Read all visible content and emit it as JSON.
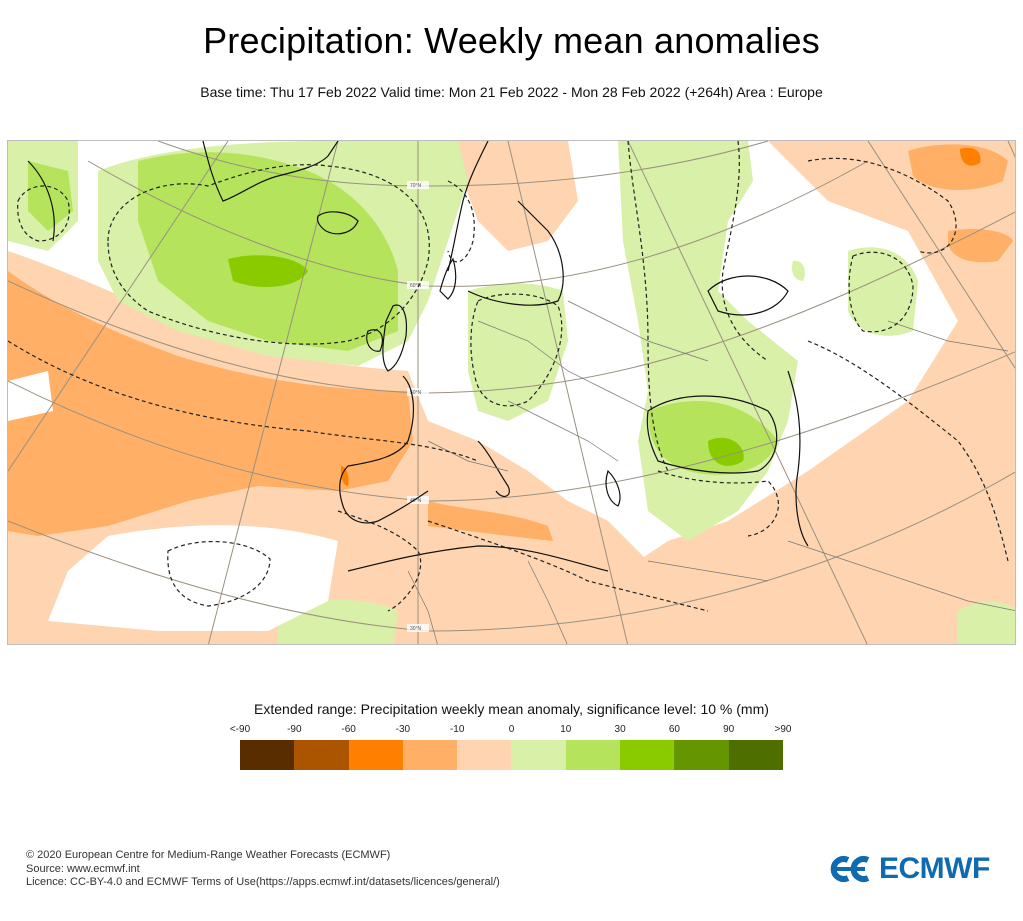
{
  "header": {
    "title": "Precipitation: Weekly mean anomalies",
    "subtitle": "Base time: Thu 17 Feb 2022 Valid time: Mon 21 Feb 2022 - Mon 28 Feb 2022 (+264h) Area : Europe"
  },
  "map": {
    "area": "Europe",
    "latitude_labels": [
      "70°N",
      "60°N",
      "50°N",
      "40°N",
      "30°N"
    ],
    "colors": {
      "neg_lt90": "#5a2d00",
      "neg_90_60": "#ab5500",
      "neg_60_30": "#ff7f00",
      "neg_30_10": "#ffb066",
      "neg_10_0": "#fed5b0",
      "pos_0_10": "#d9f0a8",
      "pos_10_30": "#b5e35c",
      "pos_30_60": "#8acb00",
      "pos_60_90": "#659600",
      "pos_gt90": "#4f6e00"
    }
  },
  "legend": {
    "title": "Extended range: Precipitation weekly mean anomaly, significance level: 10 % (mm)",
    "ticks": [
      "<-90",
      "-90",
      "-60",
      "-30",
      "-10",
      "0",
      "10",
      "30",
      "60",
      "90",
      ">90"
    ],
    "bins": [
      {
        "range": "<-90 to -90",
        "color": "#5a2d00"
      },
      {
        "range": "-90 to -60",
        "color": "#ab5500"
      },
      {
        "range": "-60 to -30",
        "color": "#ff7f00"
      },
      {
        "range": "-30 to -10",
        "color": "#ffb066"
      },
      {
        "range": "-10 to 0",
        "color": "#fed5b0"
      },
      {
        "range": "0 to 10",
        "color": "#d9f0a8"
      },
      {
        "range": "10 to 30",
        "color": "#b5e35c"
      },
      {
        "range": "30 to 60",
        "color": "#8acb00"
      },
      {
        "range": "60 to 90",
        "color": "#659600"
      },
      {
        "range": "90 to >90",
        "color": "#4f6e00"
      }
    ]
  },
  "footer": {
    "copyright": "© 2020 European Centre for Medium-Range Weather Forecasts (ECMWF)",
    "source": "Source: www.ecmwf.int",
    "licence": "Licence: CC-BY-4.0 and ECMWF Terms of Use(https://apps.ecmwf.int/datasets/licences/general/)"
  },
  "logo": {
    "text": "ECMWF",
    "color": "#0f6aaf"
  }
}
